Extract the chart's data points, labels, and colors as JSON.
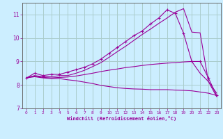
{
  "background_color": "#cceeff",
  "grid_color": "#aacccc",
  "line_color": "#990099",
  "xlim": [
    -0.5,
    23.5
  ],
  "ylim": [
    7,
    11.5
  ],
  "xlabel": "Windchill (Refroidissement éolien,°C)",
  "yticks": [
    7,
    8,
    9,
    10,
    11
  ],
  "xticks": [
    0,
    1,
    2,
    3,
    4,
    5,
    6,
    7,
    8,
    9,
    10,
    11,
    12,
    13,
    14,
    15,
    16,
    17,
    18,
    19,
    20,
    21,
    22,
    23
  ],
  "lines": [
    {
      "x": [
        0,
        1,
        2,
        3,
        4,
        5,
        6,
        7,
        8,
        9,
        10,
        11,
        12,
        13,
        14,
        15,
        16,
        17,
        18,
        19,
        20,
        21,
        22,
        23
      ],
      "y": [
        8.3,
        8.5,
        8.4,
        8.45,
        8.45,
        8.55,
        8.65,
        8.75,
        8.9,
        9.1,
        9.35,
        9.6,
        9.85,
        10.1,
        10.3,
        10.6,
        10.85,
        11.2,
        11.05,
        10.2,
        9.0,
        9.0,
        8.3,
        7.55
      ],
      "marker": "+"
    },
    {
      "x": [
        0,
        1,
        2,
        3,
        4,
        5,
        6,
        7,
        8,
        9,
        10,
        11,
        12,
        13,
        14,
        15,
        16,
        17,
        18,
        19,
        20,
        21,
        22,
        23
      ],
      "y": [
        8.3,
        8.4,
        8.35,
        8.35,
        8.4,
        8.4,
        8.5,
        8.62,
        8.78,
        8.95,
        9.18,
        9.42,
        9.65,
        9.9,
        10.15,
        10.38,
        10.62,
        10.85,
        11.1,
        11.25,
        10.25,
        10.22,
        8.15,
        7.5
      ],
      "marker": null
    },
    {
      "x": [
        0,
        1,
        2,
        3,
        4,
        5,
        6,
        7,
        8,
        9,
        10,
        11,
        12,
        13,
        14,
        15,
        16,
        17,
        18,
        19,
        20,
        21,
        22,
        23
      ],
      "y": [
        8.3,
        8.38,
        8.32,
        8.3,
        8.32,
        8.34,
        8.38,
        8.44,
        8.5,
        8.57,
        8.63,
        8.68,
        8.74,
        8.78,
        8.83,
        8.87,
        8.9,
        8.93,
        8.95,
        8.98,
        9.0,
        8.5,
        8.15,
        7.65
      ],
      "marker": null
    },
    {
      "x": [
        0,
        1,
        2,
        3,
        4,
        5,
        6,
        7,
        8,
        9,
        10,
        11,
        12,
        13,
        14,
        15,
        16,
        17,
        18,
        19,
        20,
        21,
        22,
        23
      ],
      "y": [
        8.3,
        8.35,
        8.3,
        8.27,
        8.27,
        8.22,
        8.18,
        8.12,
        8.06,
        7.98,
        7.93,
        7.88,
        7.85,
        7.83,
        7.82,
        7.8,
        7.8,
        7.8,
        7.78,
        7.77,
        7.75,
        7.7,
        7.65,
        7.55
      ],
      "marker": null
    }
  ]
}
